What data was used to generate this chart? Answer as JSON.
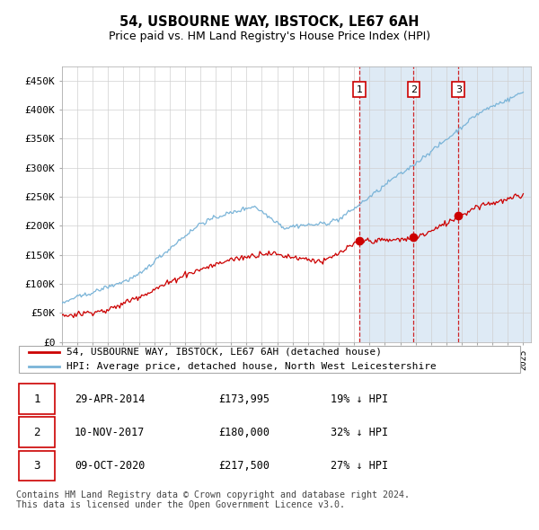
{
  "title": "54, USBOURNE WAY, IBSTOCK, LE67 6AH",
  "subtitle": "Price paid vs. HM Land Registry's House Price Index (HPI)",
  "ylabel_ticks": [
    "£0",
    "£50K",
    "£100K",
    "£150K",
    "£200K",
    "£250K",
    "£300K",
    "£350K",
    "£400K",
    "£450K"
  ],
  "ytick_values": [
    0,
    50000,
    100000,
    150000,
    200000,
    250000,
    300000,
    350000,
    400000,
    450000
  ],
  "ylim": [
    0,
    475000
  ],
  "xlim_start": 1995.0,
  "xlim_end": 2025.5,
  "sales": [
    {
      "date_num": 2014.33,
      "price": 173995,
      "label": "1"
    },
    {
      "date_num": 2017.87,
      "price": 180000,
      "label": "2"
    },
    {
      "date_num": 2020.78,
      "price": 217500,
      "label": "3"
    }
  ],
  "vline_dates": [
    2014.33,
    2017.87,
    2020.78
  ],
  "legend_red_label": "54, USBOURNE WAY, IBSTOCK, LE67 6AH (detached house)",
  "legend_blue_label": "HPI: Average price, detached house, North West Leicestershire",
  "table_rows": [
    {
      "num": "1",
      "date": "29-APR-2014",
      "price": "£173,995",
      "pct": "19% ↓ HPI"
    },
    {
      "num": "2",
      "date": "10-NOV-2017",
      "price": "£180,000",
      "pct": "32% ↓ HPI"
    },
    {
      "num": "3",
      "date": "09-OCT-2020",
      "price": "£217,500",
      "pct": "27% ↓ HPI"
    }
  ],
  "footnote": "Contains HM Land Registry data © Crown copyright and database right 2024.\nThis data is licensed under the Open Government Licence v3.0.",
  "hpi_color": "#7ab4d8",
  "price_color": "#cc0000",
  "vline_color": "#cc0000",
  "background_color": "#ffffff",
  "grid_color": "#d0d0d0",
  "shaded_region_color": "#deeaf5",
  "title_fontsize": 10.5,
  "subtitle_fontsize": 9,
  "tick_fontsize": 8,
  "label_fontsize": 8.5
}
